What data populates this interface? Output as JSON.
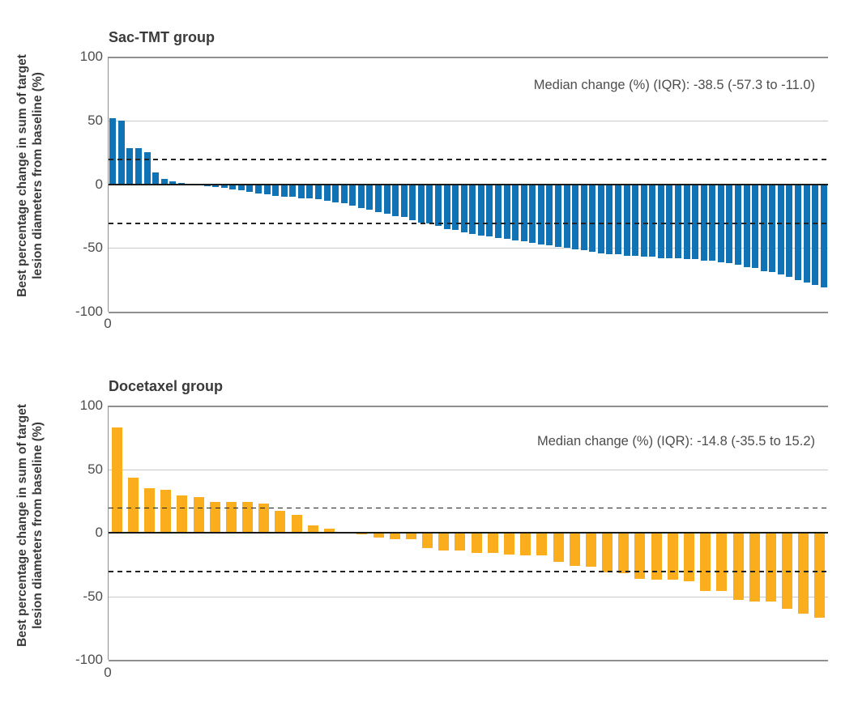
{
  "figure": {
    "y_axis_label": {
      "line1": "Best percentage change in sum of target",
      "line2": "lesion diameters from baseline (%)"
    },
    "colors": {
      "sac_tmt_bar": "#1073B6",
      "docetaxel_bar": "#FBAE1D",
      "zero_line": "#1A1A1A",
      "gridline": "#C9C9C9",
      "frame": "#909090",
      "reference_dash": "#222222",
      "title_text": "#3A3A3A",
      "tick_text": "#4D4D4D",
      "annotation_text": "#4D4D4D",
      "background": "#FFFFFF"
    }
  },
  "panels": [
    {
      "title": "Sac-TMT group",
      "median_label": "Median change (%) (IQR): -38.5 (-57.3 to -11.0)",
      "x_tick": "0",
      "y_ticks": [
        "100",
        "50",
        "0",
        "-50",
        "-100"
      ]
    },
    {
      "title": "Docetaxel group",
      "median_label": "Median change (%) (IQR): -14.8 (-35.5 to 15.2)",
      "x_tick": "0",
      "y_ticks": [
        "100",
        "50",
        "0",
        "-50",
        "-100"
      ]
    }
  ],
  "chart_data": [
    {
      "type": "bar",
      "subtype": "waterfall",
      "title": "Sac-TMT group",
      "annotation": "Median change (%) (IQR): -38.5 (-57.3 to -11.0)",
      "xlabel": "",
      "ylabel": "Best percentage change in sum of target lesion diameters from baseline (%)",
      "ylim": [
        -100,
        100
      ],
      "y_tick_values": [
        100,
        50,
        0,
        -50,
        -100
      ],
      "x_tick_labels": [
        "0"
      ],
      "reference_lines": [
        20,
        -30
      ],
      "grid": "horizontal",
      "legend_position": "none",
      "bar_color": "#1073B6",
      "n": 84,
      "values": [
        52,
        50,
        28,
        28,
        25,
        9,
        4,
        2.5,
        1,
        0.5,
        -0.5,
        -1.5,
        -2,
        -3,
        -4,
        -5,
        -6,
        -7,
        -8,
        -9,
        -10,
        -10,
        -11,
        -11,
        -12,
        -13,
        -14,
        -15,
        -17,
        -19,
        -20,
        -22,
        -23,
        -25,
        -26,
        -28,
        -30,
        -31,
        -33,
        -35,
        -36,
        -38,
        -39,
        -40,
        -41,
        -42,
        -43,
        -44,
        -45,
        -46,
        -47,
        -48,
        -49,
        -50,
        -51,
        -52,
        -53,
        -54,
        -55,
        -55,
        -56,
        -56,
        -57,
        -57,
        -58,
        -58,
        -58,
        -59,
        -59,
        -60,
        -60,
        -61,
        -62,
        -63,
        -65,
        -66,
        -68,
        -69,
        -71,
        -73,
        -75,
        -77,
        -79,
        -81
      ]
    },
    {
      "type": "bar",
      "subtype": "waterfall",
      "title": "Docetaxel group",
      "annotation": "Median change (%) (IQR): -14.8 (-35.5 to 15.2)",
      "xlabel": "",
      "ylabel": "Best percentage change in sum of target lesion diameters from baseline (%)",
      "ylim": [
        -100,
        100
      ],
      "y_tick_values": [
        100,
        50,
        0,
        -50,
        -100
      ],
      "x_tick_labels": [
        "0"
      ],
      "reference_lines": [
        20,
        -30
      ],
      "grid": "horizontal",
      "legend_position": "none",
      "bar_color": "#FBAE1D",
      "n": 44,
      "values": [
        83,
        43,
        35,
        34,
        29,
        28,
        24,
        24,
        24,
        23,
        17,
        14,
        6,
        3,
        0.5,
        -1,
        -4,
        -5,
        -5,
        -12,
        -14,
        -14,
        -16,
        -16,
        -17,
        -18,
        -18,
        -23,
        -26,
        -27,
        -31,
        -32,
        -36,
        -37,
        -37,
        -38,
        -46,
        -46,
        -53,
        -54,
        -54,
        -60,
        -64,
        -67
      ]
    }
  ]
}
